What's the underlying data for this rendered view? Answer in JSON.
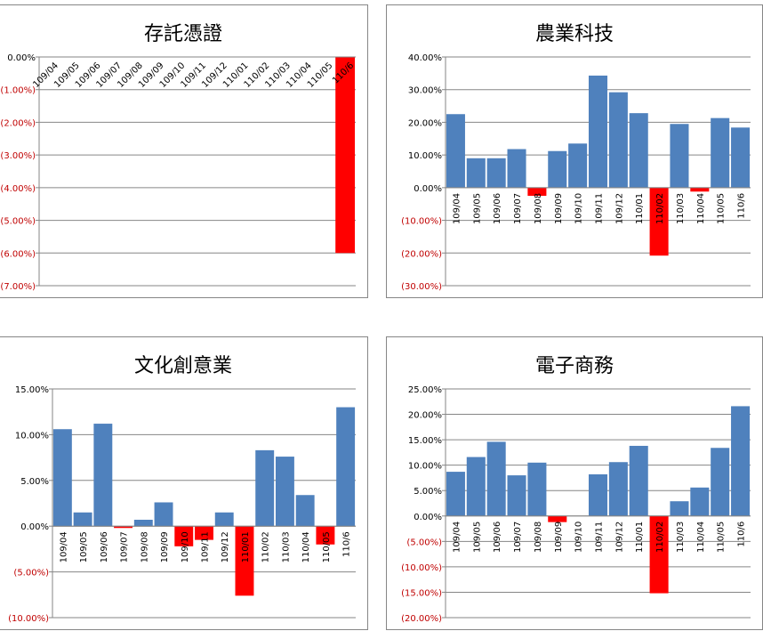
{
  "colors": {
    "positive": "#4F81BD",
    "negative": "#FF0000",
    "pos_label": "#000000",
    "neg_label": "#C00000"
  },
  "chart_data": [
    {
      "type": "bar",
      "title": "存託憑證",
      "categories": [
        "109/04",
        "109/05",
        "109/06",
        "109/07",
        "109/08",
        "109/09",
        "109/10",
        "109/11",
        "109/12",
        "110/01",
        "110/02",
        "110/03",
        "110/04",
        "110/05",
        "110/6"
      ],
      "values": [
        0,
        0,
        0,
        0,
        0,
        0,
        0,
        0,
        0,
        0,
        0,
        0,
        0,
        0,
        -6.0
      ],
      "ylim": [
        -7,
        0
      ],
      "yticks": [
        "0.00%",
        "(1.00%)",
        "(2.00%)",
        "(3.00%)",
        "(4.00%)",
        "(5.00%)",
        "(6.00%)",
        "(7.00%)"
      ],
      "grid": true
    },
    {
      "type": "bar",
      "title": "農業科技",
      "categories": [
        "109/04",
        "109/05",
        "109/06",
        "109/07",
        "109/08",
        "109/09",
        "109/10",
        "109/11",
        "109/12",
        "110/01",
        "110/02",
        "110/03",
        "110/04",
        "110/05",
        "110/6"
      ],
      "values": [
        22.5,
        9.0,
        9.0,
        11.8,
        -2.5,
        11.2,
        13.5,
        34.3,
        29.2,
        22.8,
        -20.8,
        19.5,
        -1.2,
        21.3,
        18.4
      ],
      "ylim": [
        -30,
        40
      ],
      "yticks": [
        "40.00%",
        "30.00%",
        "20.00%",
        "10.00%",
        "0.00%",
        "(10.00%)",
        "(20.00%)",
        "(30.00%)"
      ],
      "grid": true
    },
    {
      "type": "bar",
      "title": "文化創意業",
      "categories": [
        "109/04",
        "109/05",
        "109/06",
        "109/07",
        "109/08",
        "109/09",
        "109/10",
        "109/11",
        "109/12",
        "110/01",
        "110/02",
        "110/03",
        "110/04",
        "110/05",
        "110/6"
      ],
      "values": [
        10.6,
        1.5,
        11.2,
        -0.2,
        0.7,
        2.6,
        -2.2,
        -1.5,
        1.5,
        -7.6,
        8.3,
        7.6,
        3.4,
        -2.0,
        13.0
      ],
      "ylim": [
        -10,
        15
      ],
      "yticks": [
        "15.00%",
        "10.00%",
        "5.00%",
        "0.00%",
        "(5.00%)",
        "(10.00%)"
      ],
      "grid": true
    },
    {
      "type": "bar",
      "title": "電子商務",
      "categories": [
        "109/04",
        "109/05",
        "109/06",
        "109/07",
        "109/08",
        "109/09",
        "109/10",
        "109/11",
        "109/12",
        "110/01",
        "110/02",
        "110/03",
        "110/04",
        "110/05",
        "110/6"
      ],
      "values": [
        8.7,
        11.6,
        14.6,
        8.0,
        10.5,
        -1.2,
        0,
        8.2,
        10.6,
        13.8,
        -15.2,
        2.9,
        5.6,
        13.4,
        21.6
      ],
      "ylim": [
        -20,
        25
      ],
      "yticks": [
        "25.00%",
        "20.00%",
        "15.00%",
        "10.00%",
        "5.00%",
        "0.00%",
        "(5.00%)",
        "(10.00%)",
        "(15.00%)",
        "(20.00%)"
      ],
      "grid": true
    }
  ]
}
